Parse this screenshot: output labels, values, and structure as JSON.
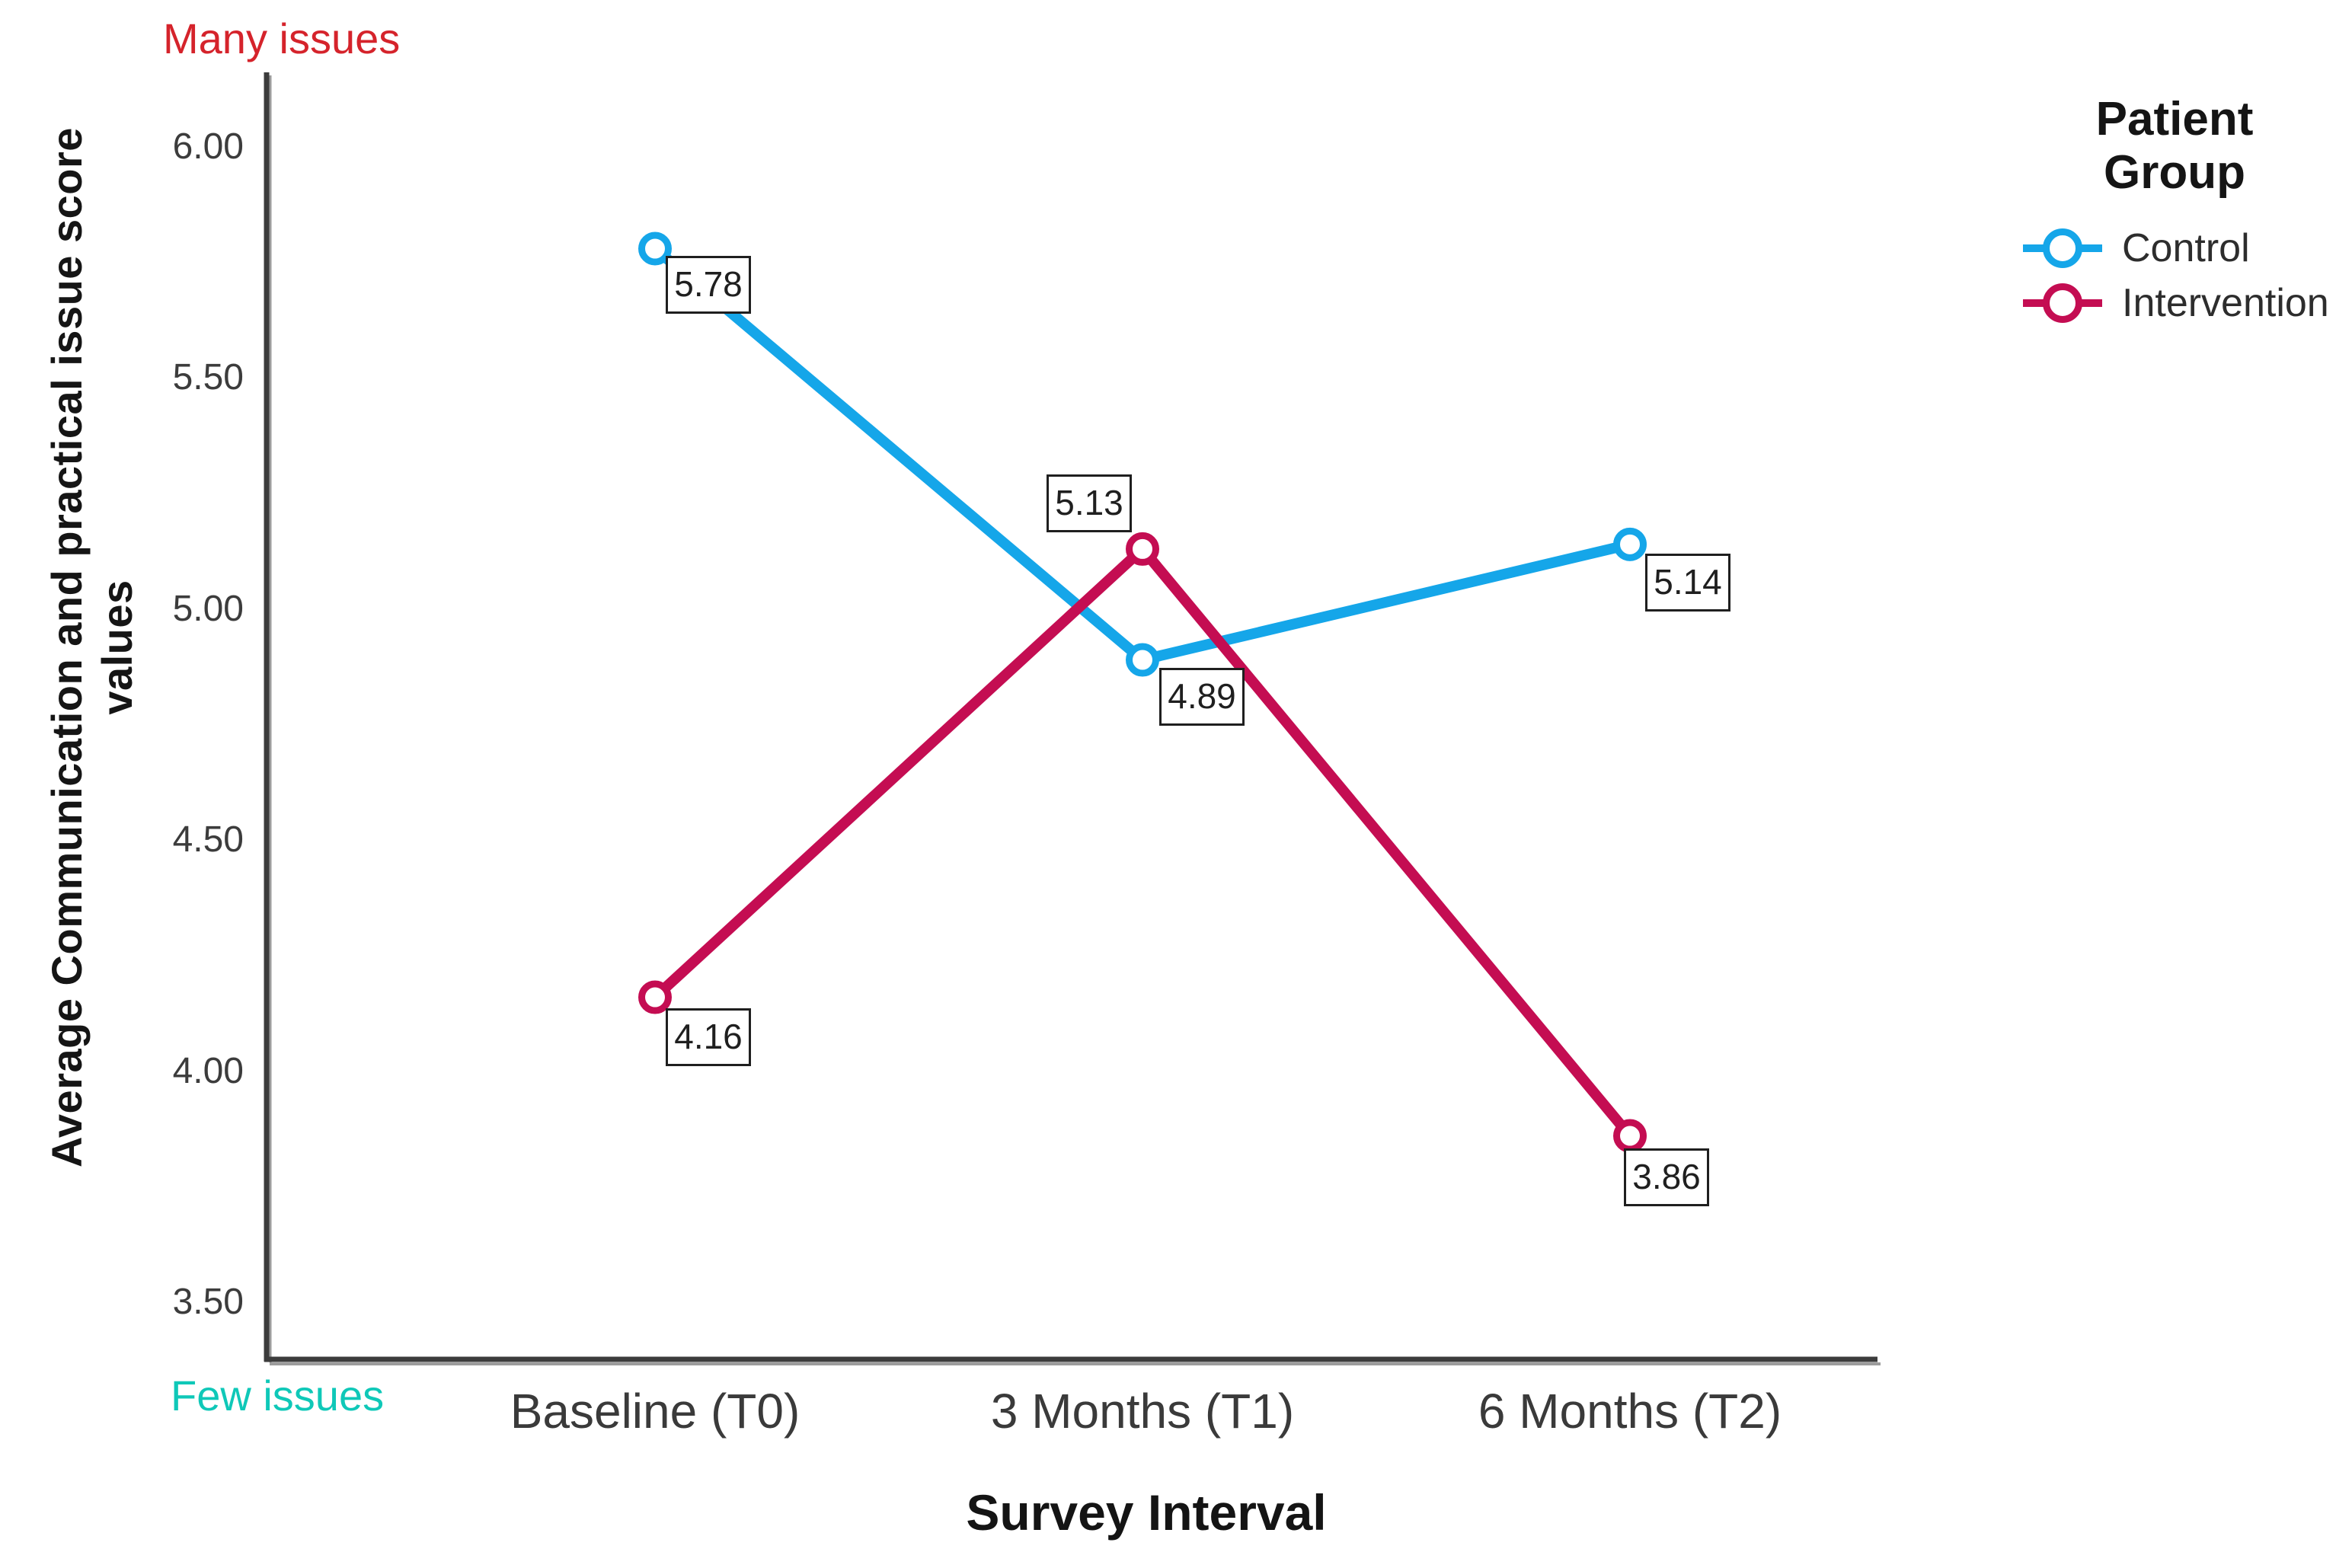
{
  "chart_data": {
    "type": "line",
    "xlabel": "Survey Interval",
    "ylabel": "Average Communication and practical issue score values",
    "ylabel_lines": [
      "Average Communication and practical issue score",
      "values"
    ],
    "categories": [
      "Baseline (T0)",
      "3 Months (T1)",
      "6 Months (T2)"
    ],
    "ytick_labels": [
      "6.00",
      "5.50",
      "5.00",
      "4.50",
      "4.00",
      "3.50"
    ],
    "yticks": [
      6.0,
      5.5,
      5.0,
      4.5,
      4.0,
      3.5
    ],
    "ylim": [
      3.4,
      6.1
    ],
    "grid": false,
    "legend_position": "right",
    "legend_title": "Patient Group",
    "top_axis_annotation": {
      "text": "Many issues",
      "color": "#d5232b"
    },
    "bottom_axis_annotation": {
      "text": "Few issues",
      "color": "#0fc8b8"
    },
    "series": [
      {
        "name": "Control",
        "color": "#15a6e9",
        "marker": "open-circle",
        "values": [
          5.78,
          4.89,
          5.14
        ],
        "point_labels": [
          "5.78",
          "4.89",
          "5.14"
        ]
      },
      {
        "name": "Intervention",
        "color": "#c40d52",
        "marker": "open-circle",
        "values": [
          4.16,
          5.13,
          3.86
        ],
        "point_labels": [
          "4.16",
          "5.13",
          "3.86"
        ]
      }
    ],
    "axis_color": "#3c3c3c"
  }
}
